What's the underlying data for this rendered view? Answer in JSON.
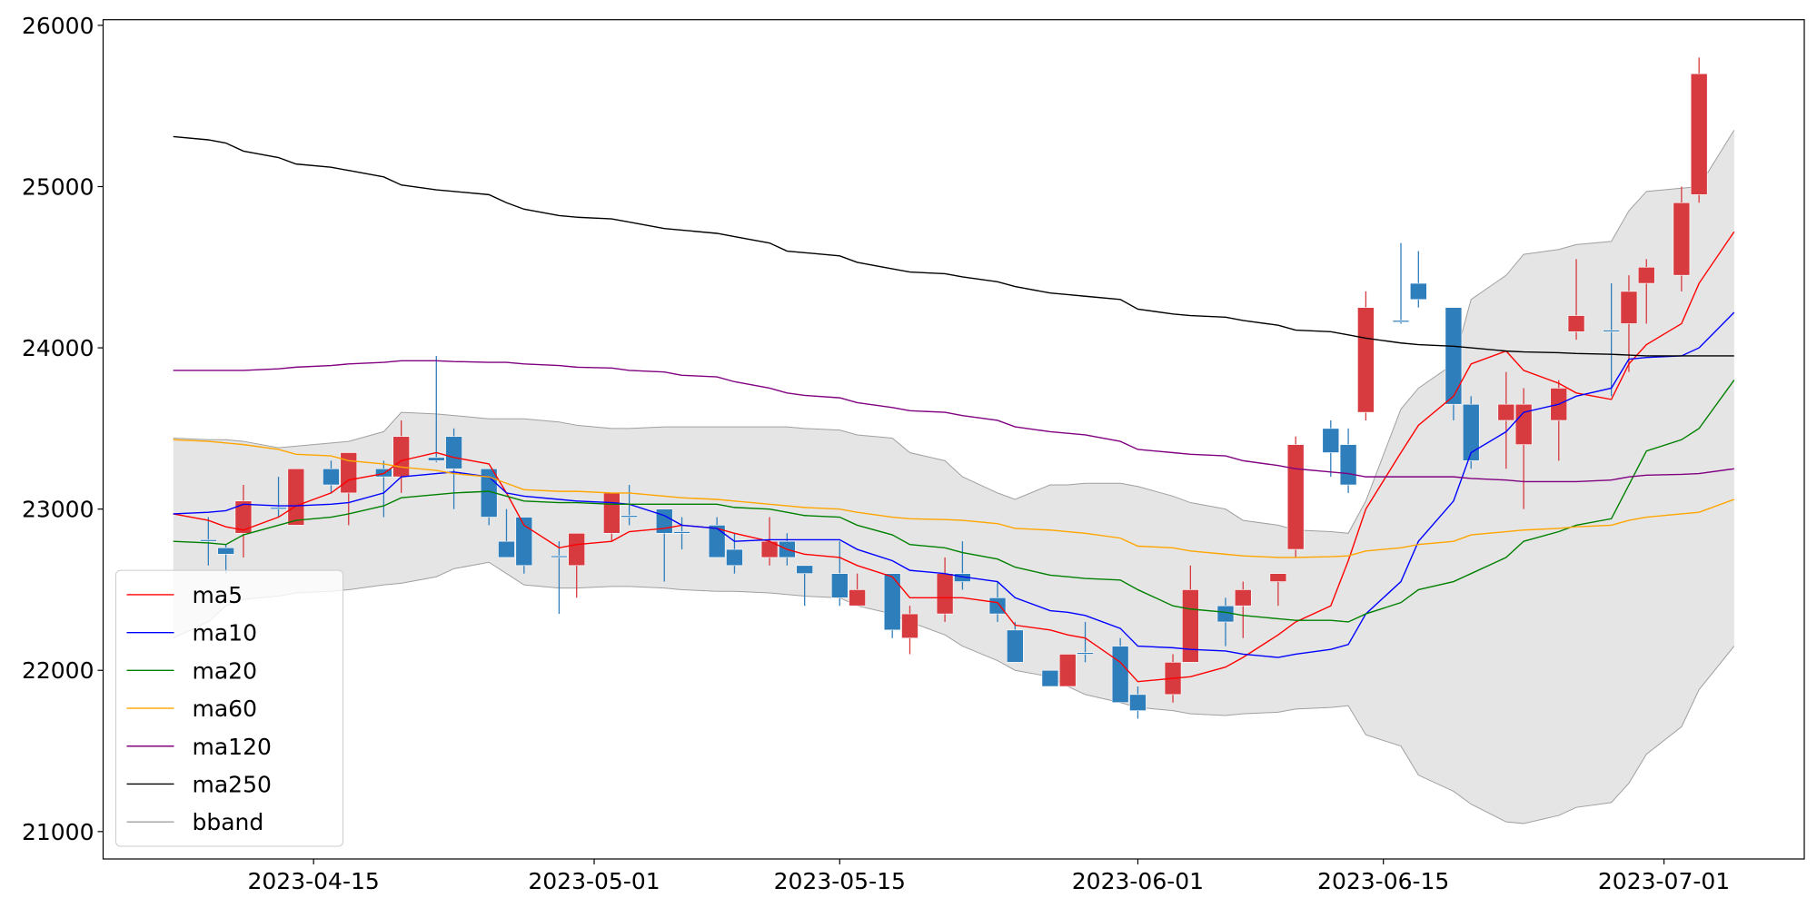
{
  "chart_data": {
    "type": "candlestick",
    "x": [
      "2023-04-07",
      "2023-04-09",
      "2023-04-10",
      "2023-04-11",
      "2023-04-13",
      "2023-04-14",
      "2023-04-16",
      "2023-04-17",
      "2023-04-19",
      "2023-04-20",
      "2023-04-22",
      "2023-04-23",
      "2023-04-25",
      "2023-04-26",
      "2023-04-27",
      "2023-04-29",
      "2023-04-30",
      "2023-05-02",
      "2023-05-03",
      "2023-05-05",
      "2023-05-06",
      "2023-05-08",
      "2023-05-09",
      "2023-05-11",
      "2023-05-12",
      "2023-05-13",
      "2023-05-15",
      "2023-05-16",
      "2023-05-18",
      "2023-05-19",
      "2023-05-21",
      "2023-05-22",
      "2023-05-24",
      "2023-05-25",
      "2023-05-27",
      "2023-05-28",
      "2023-05-29",
      "2023-05-31",
      "2023-06-01",
      "2023-06-03",
      "2023-06-04",
      "2023-06-06",
      "2023-06-07",
      "2023-06-09",
      "2023-06-10",
      "2023-06-12",
      "2023-06-13",
      "2023-06-14",
      "2023-06-16",
      "2023-06-17",
      "2023-06-19",
      "2023-06-20",
      "2023-06-22",
      "2023-06-23",
      "2023-06-25",
      "2023-06-26",
      "2023-06-28",
      "2023-06-29",
      "2023-06-30",
      "2023-07-02",
      "2023-07-03",
      "2023-07-05"
    ],
    "open": [
      null,
      22810,
      22760,
      22850,
      23010,
      22900,
      23250,
      23100,
      23250,
      23200,
      23320,
      23450,
      23250,
      22800,
      22950,
      22710,
      22650,
      22850,
      22960,
      23000,
      22860,
      22900,
      22750,
      22700,
      22800,
      22650,
      22600,
      22400,
      22600,
      22200,
      22350,
      22600,
      22450,
      22250,
      22000,
      21900,
      22110,
      22150,
      21850,
      21850,
      22050,
      22400,
      22400,
      22550,
      22750,
      23500,
      23400,
      23600,
      24170,
      24400,
      24250,
      23650,
      23550,
      23400,
      23550,
      24100,
      24110,
      24150,
      24400,
      24450,
      24950,
      null
    ],
    "high": [
      null,
      22950,
      22780,
      23150,
      23200,
      23250,
      23300,
      23350,
      23300,
      23550,
      23950,
      23500,
      23250,
      23000,
      22950,
      22800,
      22850,
      23100,
      23150,
      23000,
      22950,
      22950,
      22850,
      22950,
      22850,
      22650,
      22800,
      22600,
      22600,
      22400,
      22700,
      22800,
      22550,
      22300,
      22000,
      22100,
      22300,
      22200,
      21900,
      22100,
      22650,
      22450,
      22550,
      22600,
      23450,
      23550,
      23500,
      24350,
      24650,
      24600,
      24250,
      23700,
      23850,
      23750,
      23800,
      24550,
      24400,
      24450,
      24550,
      25000,
      25800,
      null
    ],
    "low": [
      null,
      22650,
      22600,
      22700,
      22950,
      22900,
      23100,
      22900,
      22950,
      23100,
      23290,
      23000,
      22900,
      22700,
      22600,
      22350,
      22450,
      22800,
      22900,
      22550,
      22750,
      22700,
      22600,
      22650,
      22650,
      22400,
      22400,
      22400,
      22200,
      22100,
      22300,
      22500,
      22300,
      22050,
      21900,
      21900,
      22050,
      21800,
      21700,
      21800,
      22050,
      22150,
      22200,
      22400,
      22700,
      23200,
      23100,
      23550,
      24150,
      24250,
      23550,
      23250,
      23250,
      23000,
      23300,
      24050,
      23700,
      23850,
      24150,
      24350,
      24900,
      null
    ],
    "close": [
      null,
      22800,
      22720,
      23050,
      23000,
      23250,
      23150,
      23350,
      23200,
      23450,
      23300,
      23250,
      22950,
      22700,
      22650,
      22700,
      22850,
      23100,
      22950,
      22850,
      22850,
      22700,
      22650,
      22800,
      22700,
      22600,
      22450,
      22500,
      22250,
      22350,
      22600,
      22550,
      22350,
      22050,
      21900,
      22100,
      22100,
      21800,
      21750,
      22050,
      22500,
      22300,
      22500,
      22600,
      23400,
      23350,
      23150,
      24250,
      24160,
      24300,
      23650,
      23300,
      23650,
      23650,
      23750,
      24200,
      24100,
      24350,
      24500,
      24900,
      25700,
      null
    ],
    "up_color": "#d73a3f",
    "down_color": "#2e7ebc",
    "series": [
      {
        "name": "ma5",
        "color": "#ff0000",
        "values": [
          22970,
          22930,
          22890,
          22870,
          22950,
          23020,
          23100,
          23180,
          23220,
          23300,
          23350,
          23320,
          23280,
          23100,
          22900,
          22760,
          22780,
          22800,
          22860,
          22880,
          22900,
          22880,
          22850,
          22800,
          22750,
          22720,
          22700,
          22650,
          22580,
          22450,
          22450,
          22450,
          22420,
          22280,
          22250,
          22220,
          22200,
          22050,
          21930,
          21950,
          21960,
          22020,
          22080,
          22220,
          22300,
          22400,
          22680,
          23000,
          23350,
          23520,
          23700,
          23900,
          23980,
          23860,
          23780,
          23720,
          23680,
          23900,
          24020,
          24150,
          24400,
          24720
        ]
      },
      {
        "name": "ma10",
        "color": "#0000ff",
        "values": [
          22970,
          22980,
          22990,
          23030,
          23020,
          23020,
          23030,
          23040,
          23100,
          23200,
          23220,
          23230,
          23200,
          23100,
          23080,
          23060,
          23050,
          23040,
          23030,
          22960,
          22900,
          22880,
          22800,
          22810,
          22810,
          22810,
          22810,
          22750,
          22680,
          22620,
          22600,
          22580,
          22550,
          22450,
          22370,
          22360,
          22340,
          22260,
          22150,
          22140,
          22130,
          22120,
          22100,
          22080,
          22100,
          22130,
          22160,
          22350,
          22550,
          22800,
          23050,
          23350,
          23480,
          23600,
          23650,
          23700,
          23750,
          23930,
          23940,
          23950,
          24000,
          24220
        ]
      },
      {
        "name": "ma20",
        "color": "#008000",
        "values": [
          22800,
          22790,
          22780,
          22840,
          22900,
          22930,
          22950,
          22970,
          23020,
          23070,
          23090,
          23100,
          23110,
          23080,
          23050,
          23040,
          23040,
          23030,
          23030,
          23030,
          23030,
          23030,
          23010,
          23000,
          22980,
          22960,
          22950,
          22900,
          22840,
          22780,
          22760,
          22730,
          22690,
          22640,
          22590,
          22580,
          22570,
          22560,
          22500,
          22400,
          22380,
          22360,
          22340,
          22320,
          22310,
          22310,
          22300,
          22350,
          22420,
          22500,
          22550,
          22600,
          22700,
          22800,
          22860,
          22900,
          22940,
          23150,
          23360,
          23430,
          23500,
          23800
        ]
      },
      {
        "name": "ma60",
        "color": "#ffa500",
        "values": [
          23430,
          23420,
          23410,
          23400,
          23370,
          23340,
          23330,
          23300,
          23280,
          23260,
          23240,
          23220,
          23200,
          23160,
          23120,
          23110,
          23110,
          23100,
          23100,
          23080,
          23070,
          23060,
          23050,
          23030,
          23020,
          23010,
          23000,
          22980,
          22950,
          22940,
          22935,
          22930,
          22910,
          22880,
          22870,
          22860,
          22850,
          22820,
          22770,
          22760,
          22740,
          22720,
          22710,
          22700,
          22700,
          22705,
          22710,
          22740,
          22760,
          22780,
          22800,
          22840,
          22860,
          22870,
          22880,
          22890,
          22900,
          22930,
          22950,
          22970,
          22980,
          23060
        ]
      },
      {
        "name": "ma120",
        "color": "#800080",
        "values": [
          23860,
          23860,
          23860,
          23860,
          23870,
          23880,
          23890,
          23900,
          23910,
          23920,
          23920,
          23915,
          23910,
          23910,
          23900,
          23890,
          23880,
          23875,
          23860,
          23850,
          23830,
          23820,
          23790,
          23750,
          23720,
          23705,
          23690,
          23660,
          23630,
          23610,
          23600,
          23580,
          23550,
          23510,
          23480,
          23470,
          23460,
          23420,
          23370,
          23350,
          23340,
          23330,
          23300,
          23270,
          23250,
          23230,
          23220,
          23200,
          23200,
          23200,
          23200,
          23190,
          23180,
          23170,
          23170,
          23170,
          23180,
          23200,
          23210,
          23215,
          23220,
          23250
        ]
      },
      {
        "name": "ma250",
        "color": "#000000",
        "values": [
          25310,
          25290,
          25270,
          25220,
          25180,
          25140,
          25120,
          25100,
          25060,
          25010,
          24980,
          24970,
          24950,
          24900,
          24860,
          24820,
          24810,
          24800,
          24780,
          24740,
          24730,
          24710,
          24690,
          24650,
          24600,
          24590,
          24570,
          24530,
          24490,
          24470,
          24460,
          24440,
          24410,
          24380,
          24340,
          24330,
          24320,
          24300,
          24240,
          24210,
          24200,
          24190,
          24170,
          24140,
          24110,
          24100,
          24080,
          24060,
          24030,
          24020,
          24010,
          24000,
          23980,
          23975,
          23970,
          23965,
          23960,
          23955,
          23950,
          23950,
          23950,
          23950
        ]
      }
    ],
    "band": {
      "name": "bband",
      "color": "#a0a0a0",
      "fill": "#e5e5e5",
      "upper": [
        23440,
        23430,
        23430,
        23420,
        23380,
        23390,
        23410,
        23420,
        23480,
        23600,
        23590,
        23580,
        23560,
        23560,
        23560,
        23540,
        23520,
        23500,
        23500,
        23510,
        23510,
        23510,
        23510,
        23510,
        23510,
        23500,
        23490,
        23460,
        23440,
        23350,
        23300,
        23200,
        23100,
        23060,
        23150,
        23150,
        23160,
        23160,
        23140,
        23080,
        23040,
        23000,
        22930,
        22900,
        22870,
        22860,
        22850,
        23050,
        23620,
        23750,
        23900,
        24300,
        24450,
        24580,
        24610,
        24640,
        24660,
        24850,
        24970,
        24990,
        25000,
        25350
      ],
      "lower": [
        22200,
        22300,
        22400,
        22440,
        22460,
        22480,
        22490,
        22500,
        22530,
        22540,
        22580,
        22630,
        22670,
        22600,
        22530,
        22510,
        22510,
        22520,
        22520,
        22510,
        22500,
        22490,
        22490,
        22480,
        22470,
        22460,
        22450,
        22400,
        22350,
        22300,
        22220,
        22150,
        22060,
        22000,
        21960,
        21900,
        21850,
        21800,
        21770,
        21750,
        21730,
        21720,
        21730,
        21740,
        21760,
        21770,
        21780,
        21600,
        21530,
        21350,
        21250,
        21170,
        21060,
        21050,
        21100,
        21150,
        21180,
        21300,
        21480,
        21650,
        21880,
        22150
      ]
    },
    "xlim": [
      "2023-04-03",
      "2023-07-09"
    ],
    "xticks": [
      "2023-04-15",
      "2023-05-01",
      "2023-05-15",
      "2023-06-01",
      "2023-06-15",
      "2023-07-01"
    ],
    "ylim": [
      20830,
      26035
    ],
    "yticks": [
      21000,
      22000,
      23000,
      24000,
      25000,
      26000
    ],
    "legend": "lower left"
  }
}
